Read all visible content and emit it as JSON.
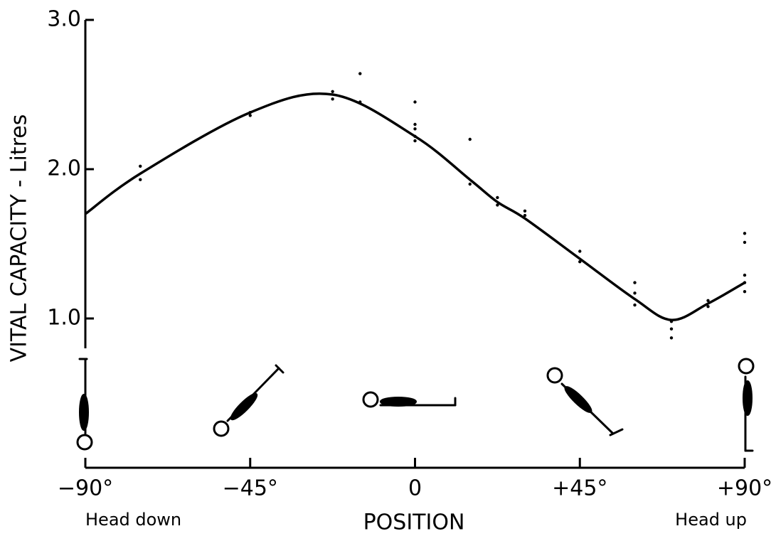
{
  "chart_data": {
    "type": "line",
    "y_label": "VITAL CAPACITY - Litres",
    "x_label": "POSITION",
    "x_end_labels": [
      "Head down",
      "Head up"
    ],
    "xlim": [
      -90,
      90
    ],
    "xticks": [
      {
        "value": -90,
        "label": "−90°"
      },
      {
        "value": -45,
        "label": "−45°"
      },
      0,
      {
        "value": 45,
        "label": "+45°"
      },
      {
        "value": 90,
        "label": "+90°"
      }
    ],
    "ylim": [
      0,
      3
    ],
    "yticks": [
      {
        "value": 1,
        "label": "1.0"
      },
      {
        "value": 2,
        "label": "2.0"
      },
      {
        "value": 3,
        "label": "3.0"
      }
    ],
    "series": [
      {
        "style": "line",
        "color": "#000000",
        "x": [
          -90,
          -75,
          -45,
          -22.5,
          0,
          15,
          22.5,
          30,
          45,
          60,
          70,
          80,
          90
        ],
        "values": [
          1.7,
          1.97,
          2.38,
          2.5,
          2.22,
          1.93,
          1.78,
          1.67,
          1.4,
          1.13,
          0.99,
          1.1,
          1.24
        ]
      },
      {
        "style": "scatter",
        "color": "#000000",
        "x": [
          -75,
          -75,
          -45,
          -45,
          -22.5,
          -22.5,
          -15,
          -15,
          0,
          0,
          0,
          0,
          0,
          15,
          15,
          22.5,
          22.5,
          30,
          30,
          45,
          45,
          60,
          60,
          60,
          70,
          70,
          70,
          80,
          80,
          90,
          90,
          90,
          90,
          90
        ],
        "values": [
          2.02,
          1.93,
          2.38,
          2.36,
          2.52,
          2.47,
          2.64,
          2.45,
          2.45,
          2.3,
          2.27,
          2.22,
          2.19,
          2.2,
          1.9,
          1.81,
          1.76,
          1.72,
          1.69,
          1.45,
          1.38,
          1.24,
          1.17,
          1.09,
          0.98,
          0.93,
          0.87,
          1.12,
          1.08,
          1.57,
          1.51,
          1.29,
          1.24,
          1.18
        ]
      }
    ]
  }
}
